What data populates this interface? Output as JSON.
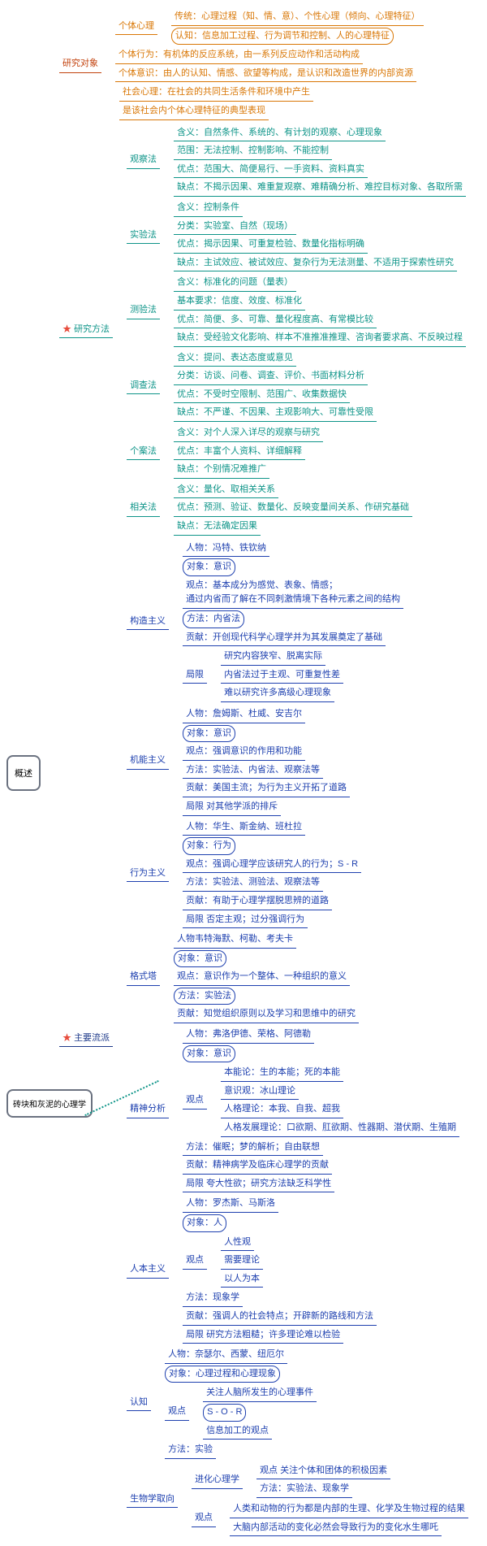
{
  "root": "概述",
  "extra_root": "砖块和灰泥的心理学",
  "b1": {
    "label": "研究对象",
    "i1": {
      "label": "个体心理",
      "a": "传统：心理过程（知、情、意）、个性心理（倾向、心理特征）",
      "b": "认知：信息加工过程、行为调节和控制、人的心理特征"
    },
    "i2": "个体行为：有机体的反应系统，由一系列反应动作和活动构成",
    "i3": "个体意识：由人的认知、情感、欲望等构成，是认识和改造世界的内部资源",
    "i4": {
      "a": "社会心理：在社会的共同生活条件和环境中产生",
      "b": "是该社会内个体心理特征的典型表现"
    }
  },
  "b2": {
    "label": "研究方法",
    "m1": {
      "label": "观察法",
      "a": "含义：自然条件、系统的、有计划的观察、心理现象",
      "b": "范围：无法控制、控制影响、不能控制",
      "c": "优点：范围大、简便易行、一手资料、资料真实",
      "d": "缺点：不揭示因果、难重复观察、难精确分析、难控目标对象、各取所需"
    },
    "m2": {
      "label": "实验法",
      "a": "含义：控制条件",
      "b": "分类：实验室、自然（现场）",
      "c": "优点：揭示因果、可重复检验、数量化指标明确",
      "d": "缺点：主试效应、被试效应、复杂行为无法测量、不适用于探索性研究"
    },
    "m3": {
      "label": "测验法",
      "a": "含义：标准化的问题（量表）",
      "b": "基本要求：信度、效度、标准化",
      "c": "优点：简便、多、可靠、量化程度高、有常模比较",
      "d": "缺点：受经验文化影响、样本不准推准推理、咨询者要求高、不反映过程"
    },
    "m4": {
      "label": "调查法",
      "a": "含义：提问、表达态度或意见",
      "b": "分类：访谈、问卷、调查、评价、书面材料分析",
      "c": "优点：不受时空限制、范围广、收集数据快",
      "d": "缺点：不严谨、不因果、主观影响大、可靠性受限"
    },
    "m5": {
      "label": "个案法",
      "a": "含义：对个人深入详尽的观察与研究",
      "b": "优点：丰富个人资料、详细解释",
      "c": "缺点：个别情况难推广"
    },
    "m6": {
      "label": "相关法",
      "a": "含义：量化、取相关关系",
      "b": "优点：预测、验证、数量化、反映变量间关系、作研究基础",
      "c": "缺点：无法确定因果"
    }
  },
  "b3": {
    "label": "主要流派",
    "s1": {
      "label": "构造主义",
      "p": "人物：冯特、铁钦纳",
      "o": "对象：意识",
      "v": "观点：基本成分为感觉、表象、情感；\n通过内省而了解在不同刺激情境下各种元素之间的结构",
      "m": "方法：内省法",
      "c": "贡献：开创现代科学心理学并为其发展奠定了基础",
      "l": {
        "label": "局限",
        "a": "研究内容狭窄、脱离实际",
        "b": "内省法过于主观、可重复性差",
        "c": "难以研究许多高级心理现象"
      }
    },
    "s2": {
      "label": "机能主义",
      "p": "人物：詹姆斯、杜威、安吉尔",
      "o": "对象：意识",
      "v": "观点：强调意识的作用和功能",
      "m": "方法：实验法、内省法、观察法等",
      "c": "贡献：美国主流；为行为主义开拓了道路",
      "l": "局限        对其他学派的排斥"
    },
    "s3": {
      "label": "行为主义",
      "p": "人物：华生、斯金纳、班杜拉",
      "o": "对象：行为",
      "v": "观点：强调心理学应该研究人的行为；S - R",
      "m": "方法：实验法、测验法、观察法等",
      "c": "贡献：有助于心理学摆脱思辨的道路",
      "l": "局限        否定主观；过分强调行为"
    },
    "s4": {
      "label": "格式塔",
      "p": "人物韦特海默、柯勒、考夫卡",
      "o": "对象：意识",
      "v": "观点：意识作为一个整体、一种组织的意义",
      "m": "方法：实验法",
      "c": "贡献：知觉组织原则以及学习和思维中的研究"
    },
    "s5": {
      "label": "精神分析",
      "p": "人物：弗洛伊德、荣格、阿德勒",
      "o": "对象：意识",
      "v": {
        "label": "观点",
        "a": "本能论：生的本能；死的本能",
        "b": "意识观：冰山理论",
        "c": "人格理论：本我、自我、超我",
        "d": "人格发展理论：口欲期、肛欲期、性器期、潜伏期、生殖期"
      },
      "m": "方法：催眠；梦的解析；自由联想",
      "c": "贡献：精神病学及临床心理学的贡献",
      "l": "局限        夸大性欲；研究方法缺乏科学性"
    },
    "s6": {
      "label": "人本主义",
      "p": "人物：罗杰斯、马斯洛",
      "o": "对象：人",
      "v": {
        "label": "观点",
        "a": "人性观",
        "b": "需要理论",
        "c": "以人为本"
      },
      "m": "方法：现象学",
      "c": "贡献：强调人的社会特点；开辟新的路线和方法",
      "l": "局限        研究方法粗糙；许多理论难以检验"
    },
    "s7": {
      "label": "认知",
      "p": "人物：奈瑟尔、西蒙、纽厄尔",
      "o": "对象：心理过程和心理现象",
      "v": {
        "label": "观点",
        "a": "关注人脑所发生的心理事件",
        "b": "S - O - R",
        "c": "信息加工的观点"
      },
      "m": "方法：实验"
    },
    "s8": {
      "label": "生物学取向",
      "e1": {
        "label": "进化心理学",
        "a": "观点        关注个体和团体的积极因素",
        "b": "方法：实验法、现象学"
      },
      "e2": {
        "label": "观点",
        "a": "人类和动物的行为都是内部的生理、化学及生物过程的结果",
        "b": "大脑内部活动的变化必然会导致行为的变化水生哪吒"
      }
    }
  }
}
